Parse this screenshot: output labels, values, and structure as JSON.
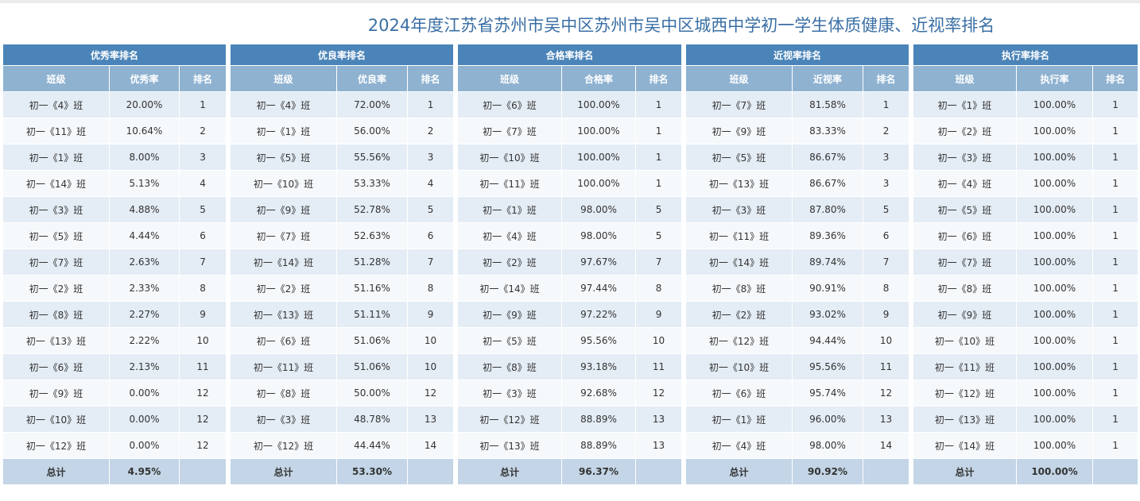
{
  "page_title": "2024年度江苏省苏州市吴中区苏州市吴中区城西中学初一学生体质健康、近视率排名",
  "total_label": "总计",
  "panels": [
    {
      "title": "优秀率排名",
      "columns": [
        "班级",
        "优秀率",
        "排名"
      ],
      "rows": [
        [
          "初一《4》班",
          "20.00%",
          "1"
        ],
        [
          "初一《11》班",
          "10.64%",
          "2"
        ],
        [
          "初一《1》班",
          "8.00%",
          "3"
        ],
        [
          "初一《14》班",
          "5.13%",
          "4"
        ],
        [
          "初一《3》班",
          "4.88%",
          "5"
        ],
        [
          "初一《5》班",
          "4.44%",
          "6"
        ],
        [
          "初一《7》班",
          "2.63%",
          "7"
        ],
        [
          "初一《2》班",
          "2.33%",
          "8"
        ],
        [
          "初一《8》班",
          "2.27%",
          "9"
        ],
        [
          "初一《13》班",
          "2.22%",
          "10"
        ],
        [
          "初一《6》班",
          "2.13%",
          "11"
        ],
        [
          "初一《9》班",
          "0.00%",
          "12"
        ],
        [
          "初一《10》班",
          "0.00%",
          "12"
        ],
        [
          "初一《12》班",
          "0.00%",
          "12"
        ]
      ],
      "total": "4.95%"
    },
    {
      "title": "优良率排名",
      "columns": [
        "班级",
        "优良率",
        "排名"
      ],
      "rows": [
        [
          "初一《4》班",
          "72.00%",
          "1"
        ],
        [
          "初一《1》班",
          "56.00%",
          "2"
        ],
        [
          "初一《5》班",
          "55.56%",
          "3"
        ],
        [
          "初一《10》班",
          "53.33%",
          "4"
        ],
        [
          "初一《9》班",
          "52.78%",
          "5"
        ],
        [
          "初一《7》班",
          "52.63%",
          "6"
        ],
        [
          "初一《14》班",
          "51.28%",
          "7"
        ],
        [
          "初一《2》班",
          "51.16%",
          "8"
        ],
        [
          "初一《13》班",
          "51.11%",
          "9"
        ],
        [
          "初一《6》班",
          "51.06%",
          "10"
        ],
        [
          "初一《11》班",
          "51.06%",
          "10"
        ],
        [
          "初一《8》班",
          "50.00%",
          "12"
        ],
        [
          "初一《3》班",
          "48.78%",
          "13"
        ],
        [
          "初一《12》班",
          "44.44%",
          "14"
        ]
      ],
      "total": "53.30%"
    },
    {
      "title": "合格率排名",
      "columns": [
        "班级",
        "合格率",
        "排名"
      ],
      "rows": [
        [
          "初一《6》班",
          "100.00%",
          "1"
        ],
        [
          "初一《7》班",
          "100.00%",
          "1"
        ],
        [
          "初一《10》班",
          "100.00%",
          "1"
        ],
        [
          "初一《11》班",
          "100.00%",
          "1"
        ],
        [
          "初一《1》班",
          "98.00%",
          "5"
        ],
        [
          "初一《4》班",
          "98.00%",
          "5"
        ],
        [
          "初一《2》班",
          "97.67%",
          "7"
        ],
        [
          "初一《14》班",
          "97.44%",
          "8"
        ],
        [
          "初一《9》班",
          "97.22%",
          "9"
        ],
        [
          "初一《5》班",
          "95.56%",
          "10"
        ],
        [
          "初一《8》班",
          "93.18%",
          "11"
        ],
        [
          "初一《3》班",
          "92.68%",
          "12"
        ],
        [
          "初一《12》班",
          "88.89%",
          "13"
        ],
        [
          "初一《13》班",
          "88.89%",
          "13"
        ]
      ],
      "total": "96.37%"
    },
    {
      "title": "近视率排名",
      "columns": [
        "班级",
        "近视率",
        "排名"
      ],
      "rows": [
        [
          "初一《7》班",
          "81.58%",
          "1"
        ],
        [
          "初一《9》班",
          "83.33%",
          "2"
        ],
        [
          "初一《5》班",
          "86.67%",
          "3"
        ],
        [
          "初一《13》班",
          "86.67%",
          "3"
        ],
        [
          "初一《3》班",
          "87.80%",
          "5"
        ],
        [
          "初一《11》班",
          "89.36%",
          "6"
        ],
        [
          "初一《14》班",
          "89.74%",
          "7"
        ],
        [
          "初一《8》班",
          "90.91%",
          "8"
        ],
        [
          "初一《2》班",
          "93.02%",
          "9"
        ],
        [
          "初一《12》班",
          "94.44%",
          "10"
        ],
        [
          "初一《10》班",
          "95.56%",
          "11"
        ],
        [
          "初一《6》班",
          "95.74%",
          "12"
        ],
        [
          "初一《1》班",
          "96.00%",
          "13"
        ],
        [
          "初一《4》班",
          "98.00%",
          "14"
        ]
      ],
      "total": "90.92%"
    },
    {
      "title": "执行率排名",
      "columns": [
        "班级",
        "执行率",
        "排名"
      ],
      "rows": [
        [
          "初一《1》班",
          "100.00%",
          "1"
        ],
        [
          "初一《2》班",
          "100.00%",
          "1"
        ],
        [
          "初一《3》班",
          "100.00%",
          "1"
        ],
        [
          "初一《4》班",
          "100.00%",
          "1"
        ],
        [
          "初一《5》班",
          "100.00%",
          "1"
        ],
        [
          "初一《6》班",
          "100.00%",
          "1"
        ],
        [
          "初一《7》班",
          "100.00%",
          "1"
        ],
        [
          "初一《8》班",
          "100.00%",
          "1"
        ],
        [
          "初一《9》班",
          "100.00%",
          "1"
        ],
        [
          "初一《10》班",
          "100.00%",
          "1"
        ],
        [
          "初一《11》班",
          "100.00%",
          "1"
        ],
        [
          "初一《12》班",
          "100.00%",
          "1"
        ],
        [
          "初一《13》班",
          "100.00%",
          "1"
        ],
        [
          "初一《14》班",
          "100.00%",
          "1"
        ]
      ],
      "total": "100.00%"
    }
  ]
}
